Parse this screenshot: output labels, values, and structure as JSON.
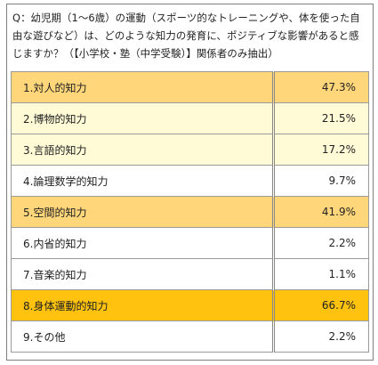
{
  "question": {
    "line1": "Q：幼児期（1〜6歳）の運動（スポーツ的なトレーニングや、体を使った自",
    "line2": "由な遊びなど）は、どのような知力の発育に、ポジティブな影響があると感",
    "line3": "じますか？（【小学校・塾（中学受験）】関係者のみ抽出）"
  },
  "colors": {
    "white": "#ffffff",
    "pale_yellow": "#fffbd6",
    "light_orange": "#ffd67a",
    "orange": "#ffc20e",
    "border": "#9a9a9a"
  },
  "chart_data": {
    "type": "table",
    "title": "Q：幼児期（1〜6歳）の運動（スポーツ的なトレーニングや、体を使った自由な遊びなど）は、どのような知力の発育に、ポジティブな影響があると感じますか？（【小学校・塾（中学受験）】関係者のみ抽出）",
    "rows": [
      {
        "label": "1.対人的知力",
        "value_text": "47.3%",
        "value": 47.3,
        "highlight": "light_orange"
      },
      {
        "label": "2.博物的知力",
        "value_text": "21.5%",
        "value": 21.5,
        "highlight": "pale_yellow"
      },
      {
        "label": "3.言語的知力",
        "value_text": "17.2%",
        "value": 17.2,
        "highlight": "pale_yellow"
      },
      {
        "label": "4.論理数学的知力",
        "value_text": "9.7%",
        "value": 9.7,
        "highlight": "white"
      },
      {
        "label": "5.空間的知力",
        "value_text": "41.9%",
        "value": 41.9,
        "highlight": "light_orange"
      },
      {
        "label": "6.内省的知力",
        "value_text": "2.2%",
        "value": 2.2,
        "highlight": "white"
      },
      {
        "label": "7.音楽的知力",
        "value_text": "1.1%",
        "value": 1.1,
        "highlight": "white"
      },
      {
        "label": "8.身体運動的知力",
        "value_text": "66.7%",
        "value": 66.7,
        "highlight": "orange"
      },
      {
        "label": "9.その他",
        "value_text": "2.2%",
        "value": 2.2,
        "highlight": "white"
      }
    ]
  }
}
